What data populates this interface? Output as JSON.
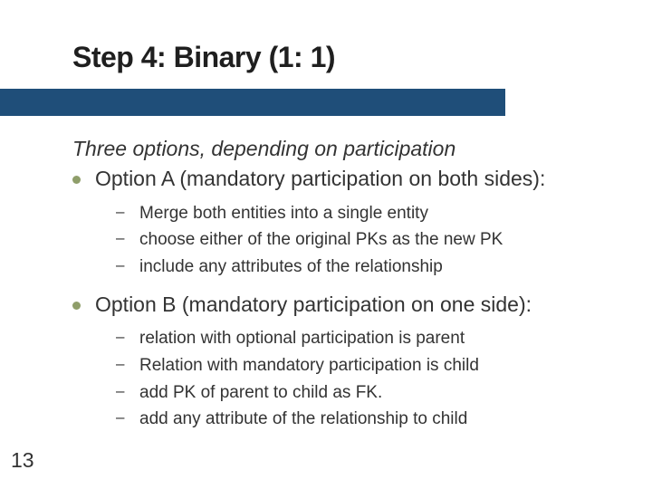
{
  "colors": {
    "underline_bar": "#1f4e79",
    "bullet": "#8f9e6a",
    "text": "#333333",
    "background": "#ffffff"
  },
  "slide": {
    "title": "Step 4: Binary (1: 1)",
    "intro": "Three options, depending on participation",
    "page_number": "13",
    "options": [
      {
        "label": "Option A (mandatory participation on both sides):",
        "subitems": [
          "Merge both entities into a single entity",
          "choose either of the original PKs as the new PK",
          "include any attributes of the relationship"
        ]
      },
      {
        "label": "Option B (mandatory participation on one side):",
        "subitems": [
          "relation with optional participation is parent",
          "Relation with mandatory participation is child",
          "add PK of parent to child as FK.",
          "add any attribute of the relationship to child"
        ]
      }
    ]
  }
}
